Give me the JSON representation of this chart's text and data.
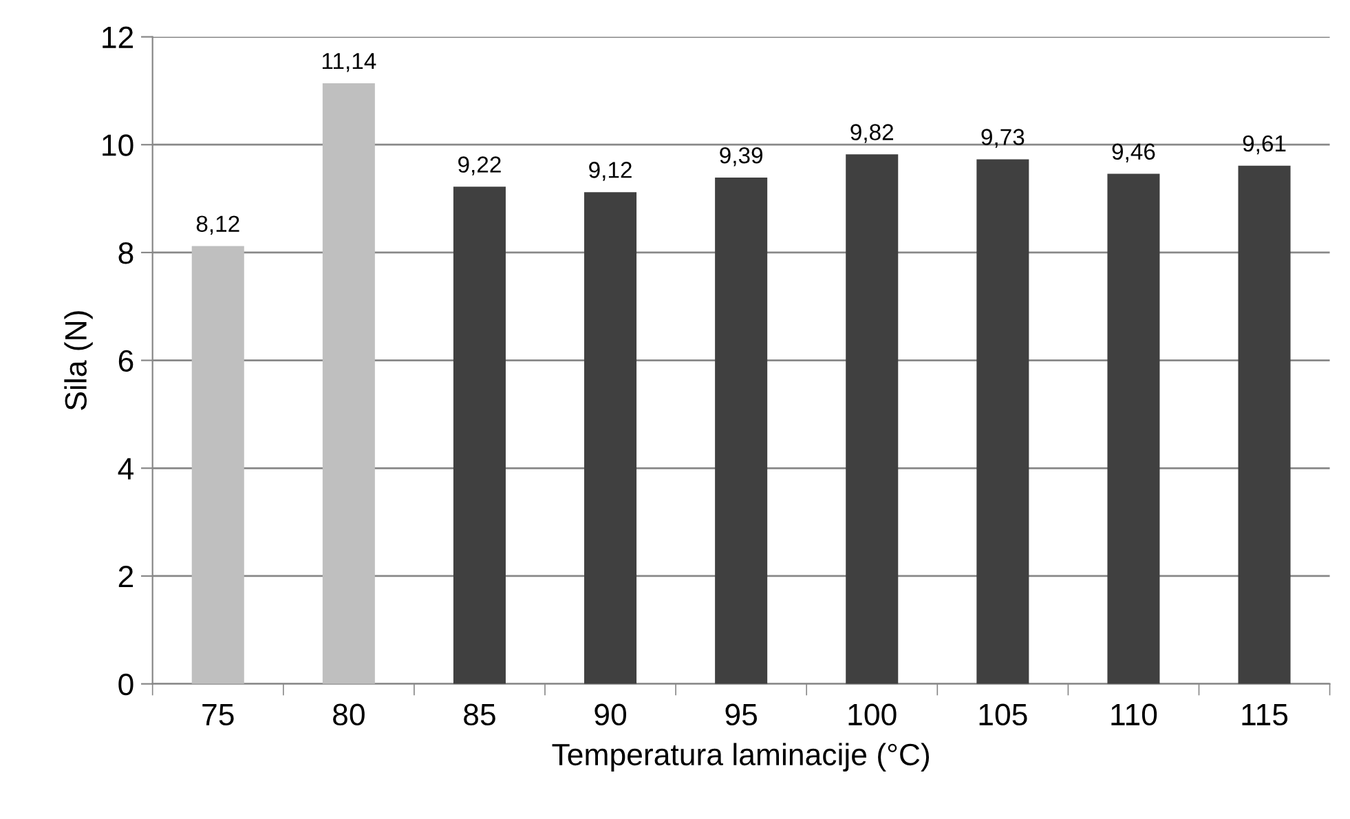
{
  "chart_data": {
    "type": "bar",
    "xlabel": "Temperatura laminacije (°C)",
    "ylabel": "Sila (N)",
    "categories": [
      "75",
      "80",
      "85",
      "90",
      "95",
      "100",
      "105",
      "110",
      "115"
    ],
    "values": [
      8.12,
      11.14,
      9.22,
      9.12,
      9.39,
      9.82,
      9.73,
      9.46,
      9.61
    ],
    "colors": [
      "#bfbfbf",
      "#bfbfbf",
      "#404040",
      "#404040",
      "#404040",
      "#404040",
      "#404040",
      "#404040",
      "#404040"
    ],
    "value_labels": [
      "8,12",
      "11,14",
      "9,22",
      "9,12",
      "9,39",
      "9,82",
      "9,73",
      "9,46",
      "9,61"
    ],
    "ylim": [
      0,
      12
    ],
    "yticks": [
      0,
      2,
      4,
      6,
      8,
      10,
      12
    ],
    "grid": "y",
    "legend": false
  }
}
